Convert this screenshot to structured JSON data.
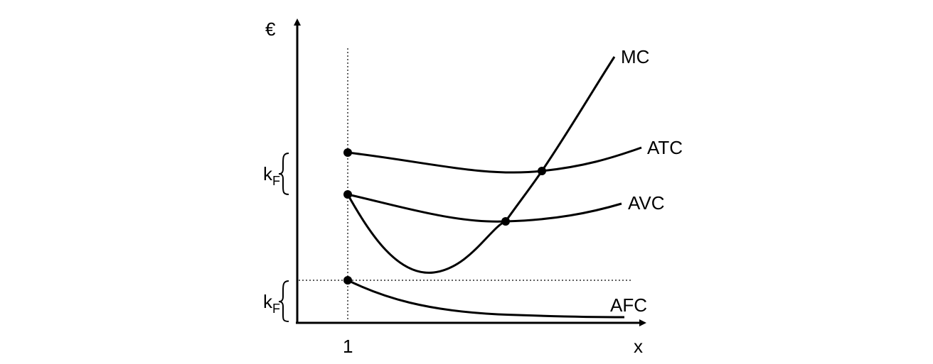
{
  "diagram": {
    "y_axis_label": "€",
    "x_axis_label": "x",
    "x_tick_label": "1",
    "brace_labels": [
      {
        "main": "k",
        "sub": "F"
      },
      {
        "main": "k",
        "sub": "F"
      }
    ],
    "curves": {
      "mc": "MC",
      "atc": "ATC",
      "avc": "AVC",
      "afc": "AFC"
    },
    "colors": {
      "ink": "#000000",
      "background": "#ffffff"
    }
  }
}
